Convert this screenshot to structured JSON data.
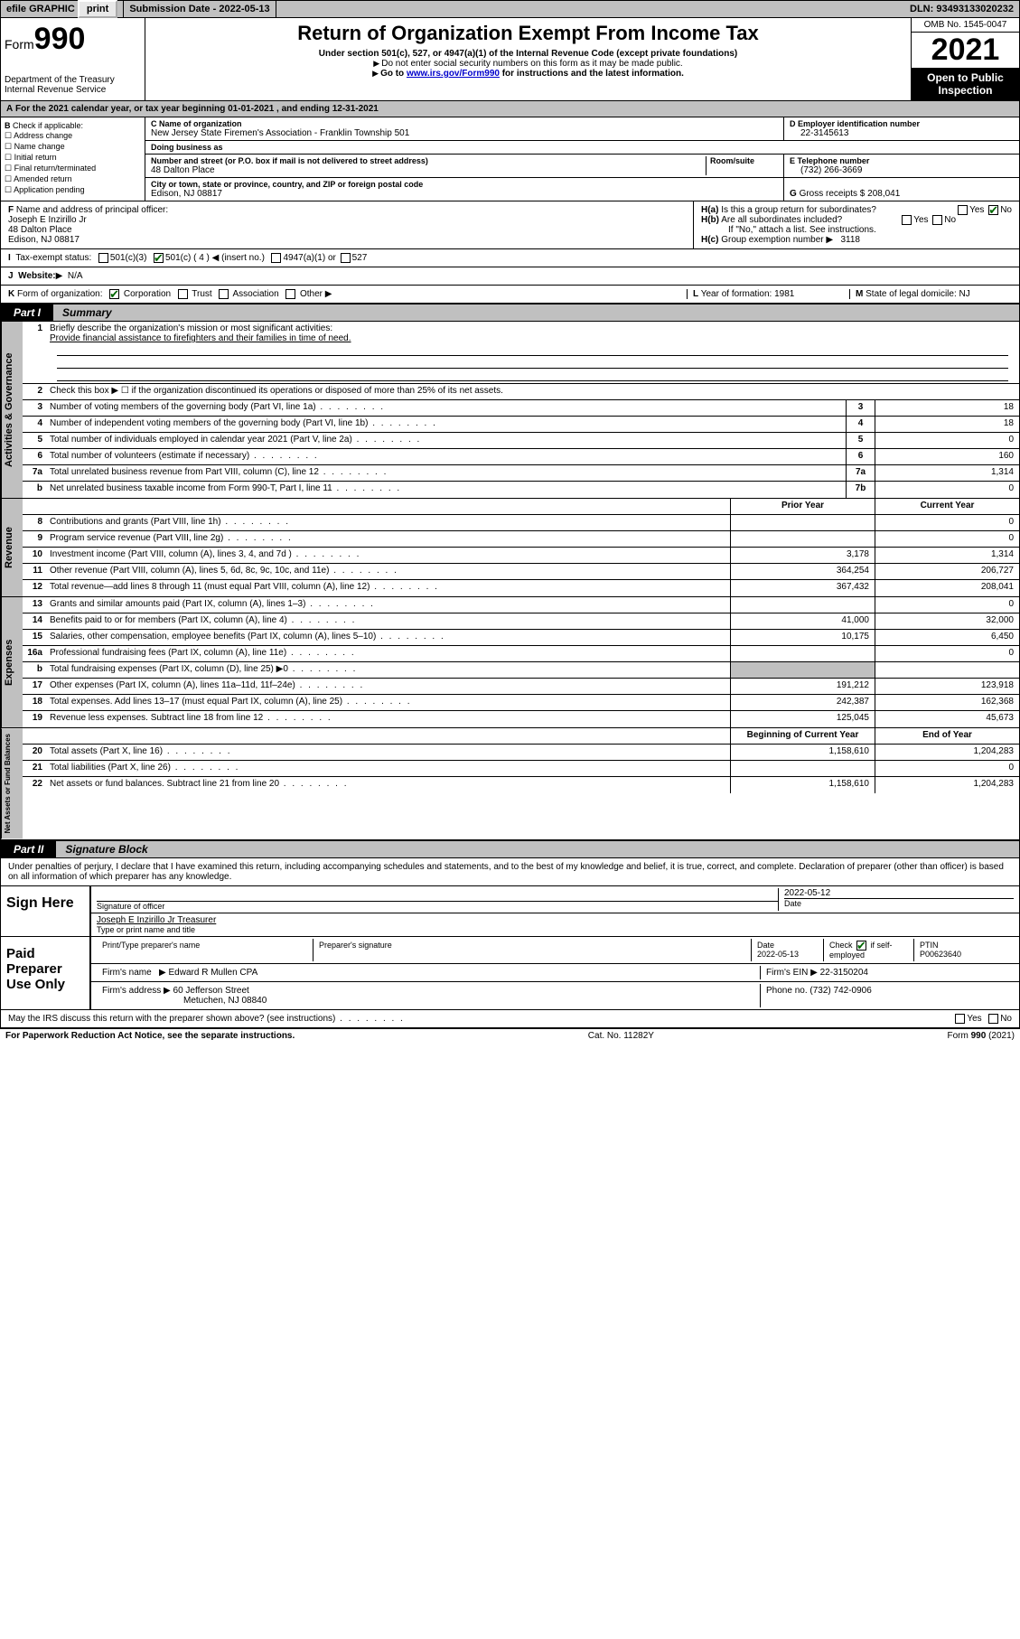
{
  "topbar": {
    "efile": "efile GRAPHIC",
    "print": "print",
    "submission_label": "Submission Date - ",
    "submission_date": "2022-05-13",
    "dln_label": "DLN: ",
    "dln": "93493133020232"
  },
  "header": {
    "form_word": "Form",
    "form_no": "990",
    "dept": "Department of the Treasury",
    "irs": "Internal Revenue Service",
    "title": "Return of Organization Exempt From Income Tax",
    "subtitle": "Under section 501(c), 527, or 4947(a)(1) of the Internal Revenue Code (except private foundations)",
    "note1": "Do not enter social security numbers on this form as it may be made public.",
    "note2_pre": "Go to ",
    "note2_link": "www.irs.gov/Form990",
    "note2_post": " for instructions and the latest information.",
    "omb": "OMB No. 1545-0047",
    "year": "2021",
    "open": "Open to Public Inspection"
  },
  "period": {
    "text_pre": "For the 2021 calendar year, or tax year beginning ",
    "begin": "01-01-2021",
    "mid": " , and ending ",
    "end": "12-31-2021"
  },
  "B": {
    "label": "Check if applicable:",
    "items": [
      "Address change",
      "Name change",
      "Initial return",
      "Final return/terminated",
      "Amended return",
      "Application pending"
    ]
  },
  "C": {
    "name_label": "Name of organization",
    "name": "New Jersey State Firemen's Association - Franklin Township 501",
    "dba_label": "Doing business as",
    "dba": "",
    "street_label": "Number and street (or P.O. box if mail is not delivered to street address)",
    "room_label": "Room/suite",
    "street": "48 Dalton Place",
    "city_label": "City or town, state or province, country, and ZIP or foreign postal code",
    "city": "Edison, NJ  08817"
  },
  "D": {
    "label": "Employer identification number",
    "value": "22-3145613"
  },
  "E": {
    "label": "Telephone number",
    "value": "(732) 266-3669"
  },
  "G": {
    "label": "Gross receipts $",
    "value": "208,041"
  },
  "F": {
    "label": "Name and address of principal officer:",
    "name": "Joseph E Inzirillo Jr",
    "street": "48 Dalton Place",
    "city": "Edison, NJ  08817"
  },
  "H": {
    "a": "Is this a group return for subordinates?",
    "a_yes": "Yes",
    "a_no": "No",
    "b": "Are all subordinates included?",
    "b_note": "If \"No,\" attach a list. See instructions.",
    "c_label": "Group exemption number",
    "c_value": "3118"
  },
  "I": {
    "label": "Tax-exempt status:",
    "opt1": "501(c)(3)",
    "opt2": "501(c) ( 4 ) ◀ (insert no.)",
    "opt3": "4947(a)(1) or",
    "opt4": "527"
  },
  "J": {
    "label": "Website:",
    "value": "N/A"
  },
  "K": {
    "label": "Form of organization:",
    "opts": [
      "Corporation",
      "Trust",
      "Association",
      "Other"
    ]
  },
  "L": {
    "label": "Year of formation:",
    "value": "1981"
  },
  "M": {
    "label": "State of legal domicile:",
    "value": "NJ"
  },
  "partI": {
    "tab": "Part I",
    "title": "Summary"
  },
  "summary": {
    "q1_label": "Briefly describe the organization's mission or most significant activities:",
    "q1_text": "Provide financial assistance to firefighters and their families in time of need.",
    "q2": "Check this box ▶ ☐ if the organization discontinued its operations or disposed of more than 25% of its net assets.",
    "lines_gov": [
      {
        "n": "3",
        "d": "Number of voting members of the governing body (Part VI, line 1a)",
        "box": "3",
        "v": "18"
      },
      {
        "n": "4",
        "d": "Number of independent voting members of the governing body (Part VI, line 1b)",
        "box": "4",
        "v": "18"
      },
      {
        "n": "5",
        "d": "Total number of individuals employed in calendar year 2021 (Part V, line 2a)",
        "box": "5",
        "v": "0"
      },
      {
        "n": "6",
        "d": "Total number of volunteers (estimate if necessary)",
        "box": "6",
        "v": "160"
      },
      {
        "n": "7a",
        "d": "Total unrelated business revenue from Part VIII, column (C), line 12",
        "box": "7a",
        "v": "1,314"
      },
      {
        "n": "b",
        "d": "Net unrelated business taxable income from Form 990-T, Part I, line 11",
        "box": "7b",
        "v": "0"
      }
    ],
    "col_prior": "Prior Year",
    "col_current": "Current Year",
    "revenue": [
      {
        "n": "8",
        "d": "Contributions and grants (Part VIII, line 1h)",
        "p": "",
        "c": "0"
      },
      {
        "n": "9",
        "d": "Program service revenue (Part VIII, line 2g)",
        "p": "",
        "c": "0"
      },
      {
        "n": "10",
        "d": "Investment income (Part VIII, column (A), lines 3, 4, and 7d )",
        "p": "3,178",
        "c": "1,314"
      },
      {
        "n": "11",
        "d": "Other revenue (Part VIII, column (A), lines 5, 6d, 8c, 9c, 10c, and 11e)",
        "p": "364,254",
        "c": "206,727"
      },
      {
        "n": "12",
        "d": "Total revenue—add lines 8 through 11 (must equal Part VIII, column (A), line 12)",
        "p": "367,432",
        "c": "208,041"
      }
    ],
    "expenses": [
      {
        "n": "13",
        "d": "Grants and similar amounts paid (Part IX, column (A), lines 1–3)",
        "p": "",
        "c": "0"
      },
      {
        "n": "14",
        "d": "Benefits paid to or for members (Part IX, column (A), line 4)",
        "p": "41,000",
        "c": "32,000"
      },
      {
        "n": "15",
        "d": "Salaries, other compensation, employee benefits (Part IX, column (A), lines 5–10)",
        "p": "10,175",
        "c": "6,450"
      },
      {
        "n": "16a",
        "d": "Professional fundraising fees (Part IX, column (A), line 11e)",
        "p": "",
        "c": "0"
      },
      {
        "n": "b",
        "d": "Total fundraising expenses (Part IX, column (D), line 25) ▶0",
        "p": "shade",
        "c": "shade"
      },
      {
        "n": "17",
        "d": "Other expenses (Part IX, column (A), lines 11a–11d, 11f–24e)",
        "p": "191,212",
        "c": "123,918"
      },
      {
        "n": "18",
        "d": "Total expenses. Add lines 13–17 (must equal Part IX, column (A), line 25)",
        "p": "242,387",
        "c": "162,368"
      },
      {
        "n": "19",
        "d": "Revenue less expenses. Subtract line 18 from line 12",
        "p": "125,045",
        "c": "45,673"
      }
    ],
    "col_begin": "Beginning of Current Year",
    "col_end": "End of Year",
    "netassets": [
      {
        "n": "20",
        "d": "Total assets (Part X, line 16)",
        "p": "1,158,610",
        "c": "1,204,283"
      },
      {
        "n": "21",
        "d": "Total liabilities (Part X, line 26)",
        "p": "",
        "c": "0"
      },
      {
        "n": "22",
        "d": "Net assets or fund balances. Subtract line 21 from line 20",
        "p": "1,158,610",
        "c": "1,204,283"
      }
    ],
    "vtabs": {
      "gov": "Activities & Governance",
      "rev": "Revenue",
      "exp": "Expenses",
      "net": "Net Assets or Fund Balances"
    }
  },
  "partII": {
    "tab": "Part II",
    "title": "Signature Block"
  },
  "penalty": "Under penalties of perjury, I declare that I have examined this return, including accompanying schedules and statements, and to the best of my knowledge and belief, it is true, correct, and complete. Declaration of preparer (other than officer) is based on all information of which preparer has any knowledge.",
  "sign": {
    "here": "Sign Here",
    "sig_label": "Signature of officer",
    "date_label": "Date",
    "date": "2022-05-12",
    "name": "Joseph E Inzirillo Jr  Treasurer",
    "name_label": "Type or print name and title"
  },
  "paid": {
    "label": "Paid Preparer Use Only",
    "hdr": [
      "Print/Type preparer's name",
      "Preparer's signature",
      "Date",
      "",
      "PTIN"
    ],
    "date": "2022-05-13",
    "check_label": "Check",
    "check_if": "if self-employed",
    "ptin": "P00623640",
    "firm_name_label": "Firm's name",
    "firm_name": "Edward R Mullen CPA",
    "firm_ein_label": "Firm's EIN",
    "firm_ein": "22-3150204",
    "firm_addr_label": "Firm's address",
    "firm_addr1": "60 Jefferson Street",
    "firm_addr2": "Metuchen, NJ  08840",
    "phone_label": "Phone no.",
    "phone": "(732) 742-0906"
  },
  "discuss": {
    "q": "May the IRS discuss this return with the preparer shown above? (see instructions)",
    "yes": "Yes",
    "no": "No"
  },
  "footer": {
    "left": "For Paperwork Reduction Act Notice, see the separate instructions.",
    "mid": "Cat. No. 11282Y",
    "right": "Form 990 (2021)"
  }
}
